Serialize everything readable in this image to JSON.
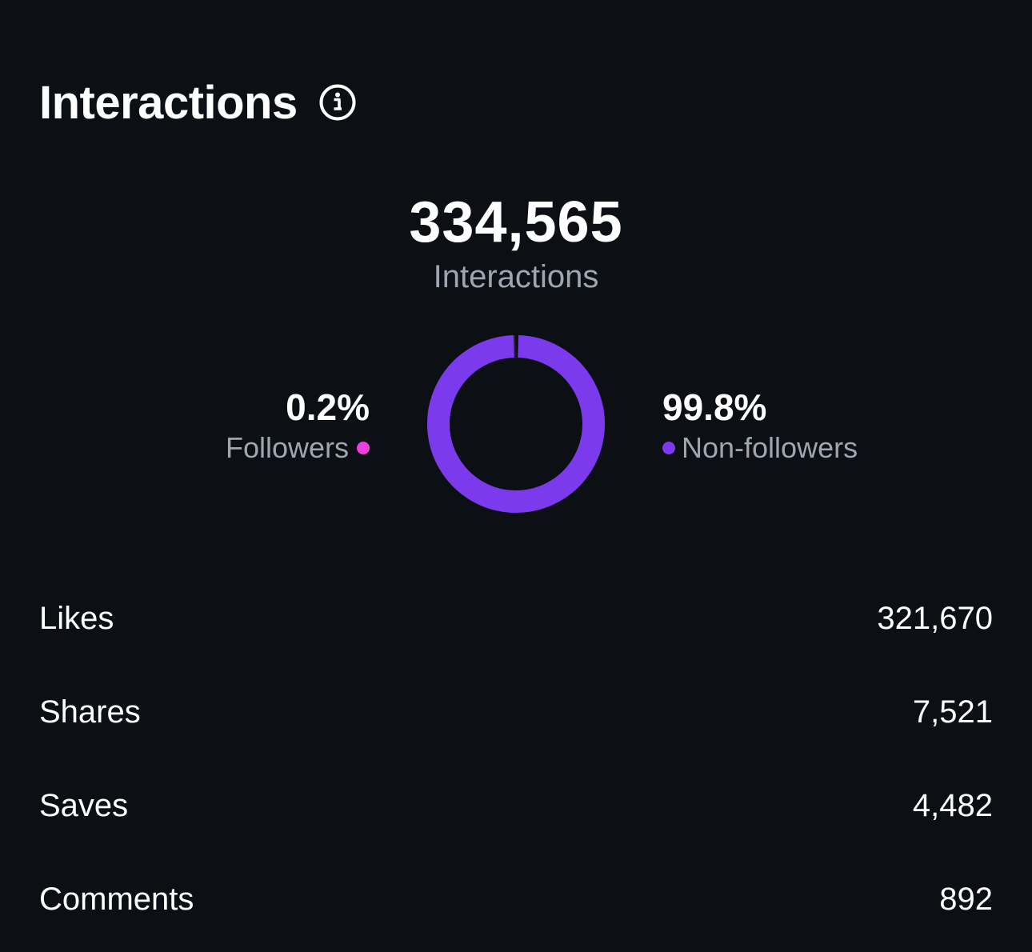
{
  "header": {
    "title": "Interactions",
    "info_icon": "info-icon"
  },
  "summary": {
    "total": "334,565",
    "label": "Interactions"
  },
  "breakdown": {
    "followers": {
      "percent": "0.2%",
      "label": "Followers",
      "color": "#f03ee0",
      "fraction": 0.002
    },
    "non_followers": {
      "percent": "99.8%",
      "label": "Non-followers",
      "color": "#7c3aed",
      "fraction": 0.998
    }
  },
  "metrics": [
    {
      "label": "Likes",
      "value": "321,670"
    },
    {
      "label": "Shares",
      "value": "7,521"
    },
    {
      "label": "Saves",
      "value": "4,482"
    },
    {
      "label": "Comments",
      "value": "892"
    }
  ],
  "colors": {
    "background": "#0c0f14",
    "text_primary": "#ffffff",
    "text_secondary": "#a0a6b1",
    "accent_purple": "#7c3aed",
    "accent_pink": "#f03ee0"
  }
}
